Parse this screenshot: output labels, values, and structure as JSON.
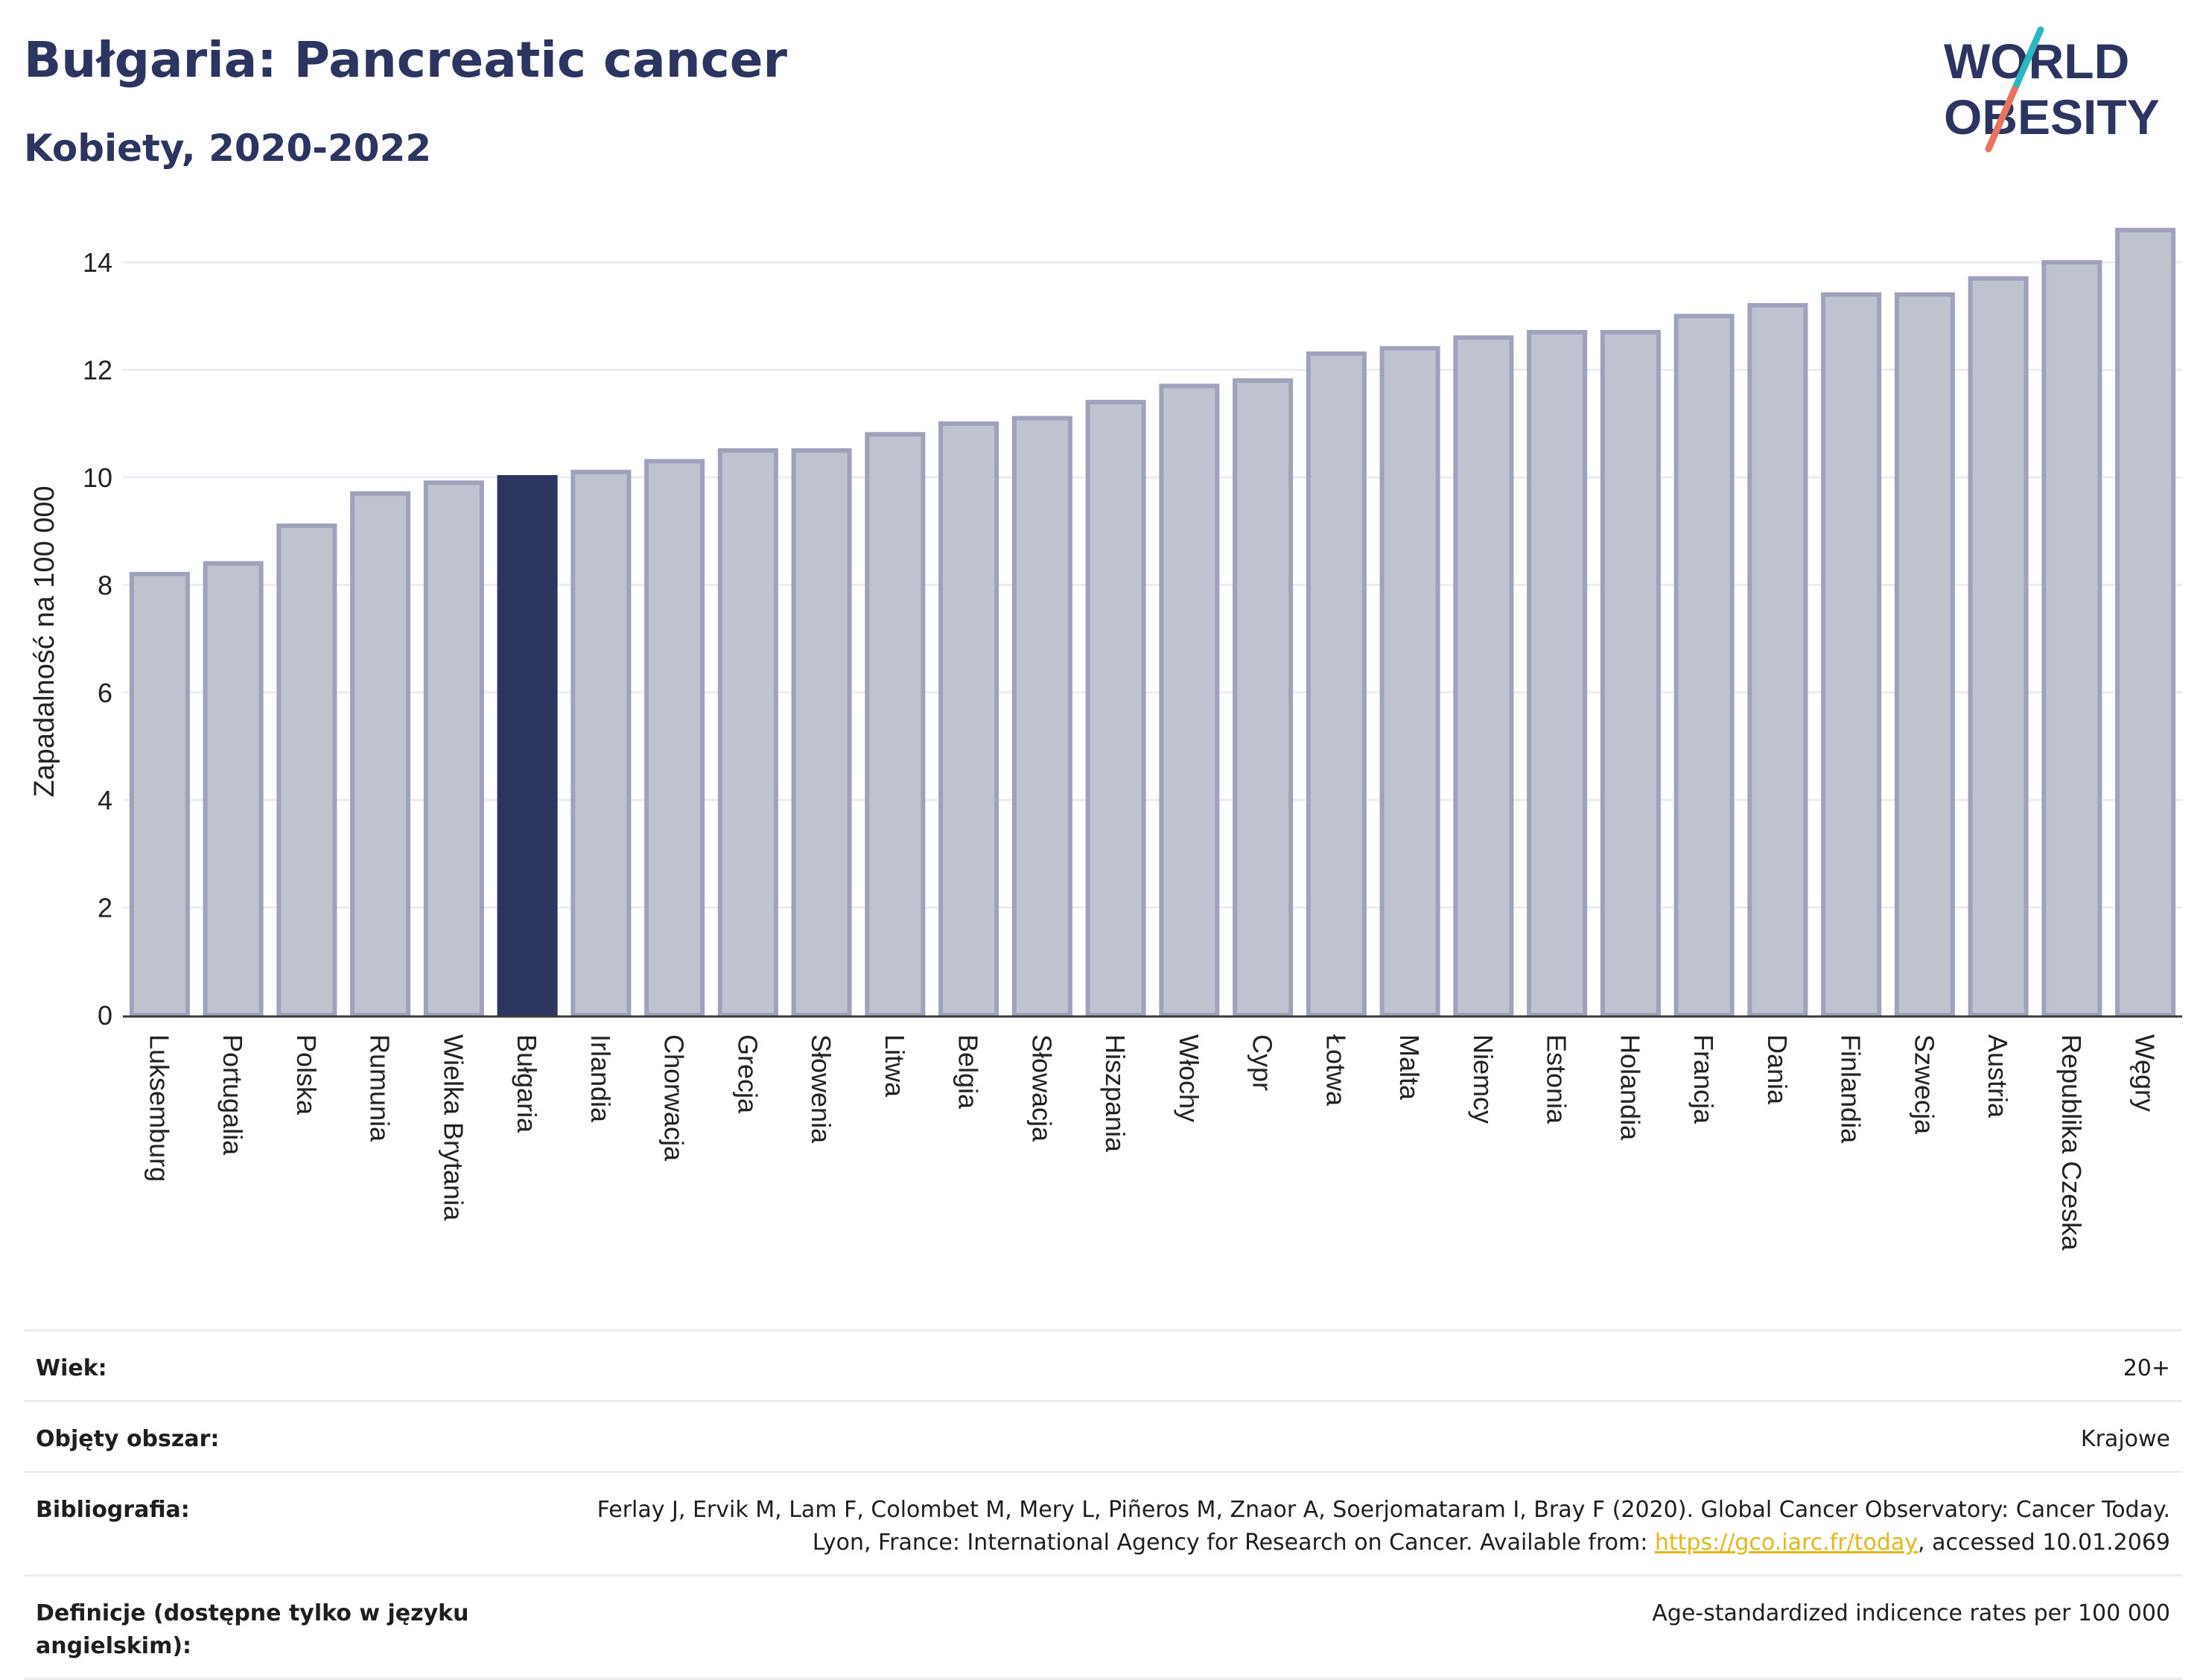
{
  "header": {
    "title": "Bułgaria: Pancreatic cancer",
    "subtitle": "Kobiety, 2020-2022"
  },
  "logo": {
    "line1": "WORLD",
    "line2": "OBESITY"
  },
  "colors": {
    "highlight": "#2b3560",
    "bar_fill": "#bfc2cf",
    "bar_stroke": "#9ea3bb",
    "grid": "#e8edf3",
    "logo_teal": "#2bb8c0",
    "logo_coral": "#e8735f",
    "link": "#e5b818"
  },
  "chart_data": {
    "type": "bar",
    "ylabel": "Zapadalność na 100 000",
    "xlabel": "",
    "ylim": [
      0,
      15
    ],
    "yticks": [
      0,
      2,
      4,
      6,
      8,
      10,
      12,
      14
    ],
    "grid": true,
    "highlighted": "Bułgaria",
    "categories": [
      "Luksemburg",
      "Portugalia",
      "Polska",
      "Rumunia",
      "Wielka Brytania",
      "Bułgaria",
      "Irlandia",
      "Chorwacja",
      "Grecja",
      "Słowenia",
      "Litwa",
      "Belgia",
      "Słowacja",
      "Hiszpania",
      "Włochy",
      "Cypr",
      "Łotwa",
      "Malta",
      "Niemcy",
      "Estonia",
      "Holandia",
      "Francja",
      "Dania",
      "Finlandia",
      "Szwecja",
      "Austria",
      "Republika Czeska",
      "Węgry"
    ],
    "values": [
      8.2,
      8.4,
      9.1,
      9.7,
      9.9,
      10.0,
      10.1,
      10.3,
      10.5,
      10.5,
      10.8,
      11.0,
      11.1,
      11.4,
      11.7,
      11.8,
      12.3,
      12.4,
      12.6,
      12.7,
      12.7,
      13.0,
      13.2,
      13.4,
      13.4,
      13.7,
      14.0,
      14.6
    ]
  },
  "info": {
    "age_label": "Wiek:",
    "age_value": "20+",
    "area_label": "Objęty obszar:",
    "area_value": "Krajowe",
    "bib_label": "Bibliografia:",
    "bib_text_1": "Ferlay J, Ervik M, Lam F, Colombet M, Mery L, Piñeros M, Znaor A, Soerjomataram I, Bray F (2020). Global Cancer Observatory: Cancer Today. Lyon, France: International Agency for Research on Cancer. Available from: ",
    "bib_link": "https://gco.iarc.fr/today",
    "bib_text_2": ", accessed 10.01.2069",
    "def_label": "Definicje (dostępne tylko w języku angielskim):",
    "def_value": "Age-standardized indicence rates per 100 000"
  }
}
